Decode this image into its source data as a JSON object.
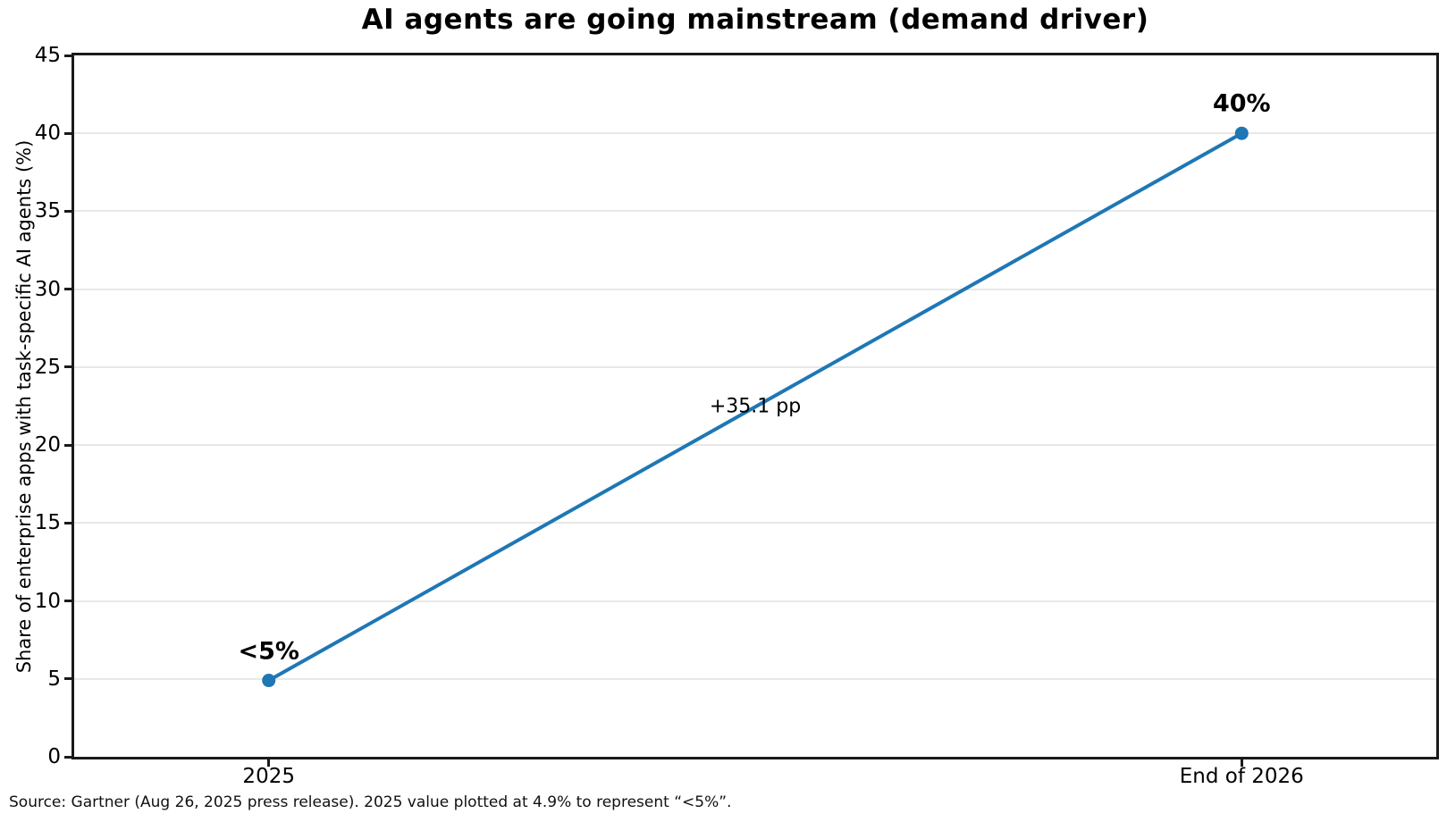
{
  "chart_data": {
    "type": "line",
    "title": "AI agents are going mainstream (demand driver)",
    "xlabel": "",
    "ylabel": "Share of enterprise apps with task-specific AI agents (%)",
    "categories": [
      "2025",
      "End of 2026"
    ],
    "x_positions": [
      0,
      1
    ],
    "xlim": [
      -0.2,
      1.2
    ],
    "values": [
      4.9,
      40
    ],
    "point_labels": [
      "<5%",
      "40%"
    ],
    "delta_annotation": "+35.1 pp",
    "ylim": [
      0,
      45
    ],
    "yticks": [
      0,
      5,
      10,
      15,
      20,
      25,
      30,
      35,
      40,
      45
    ],
    "grid": "horizontal",
    "legend": "none",
    "line_color": "#1f77b4",
    "marker": "circle"
  },
  "source_note": "Source: Gartner (Aug 26, 2025 press release). 2025 value plotted at 4.9% to represent “<5%”."
}
